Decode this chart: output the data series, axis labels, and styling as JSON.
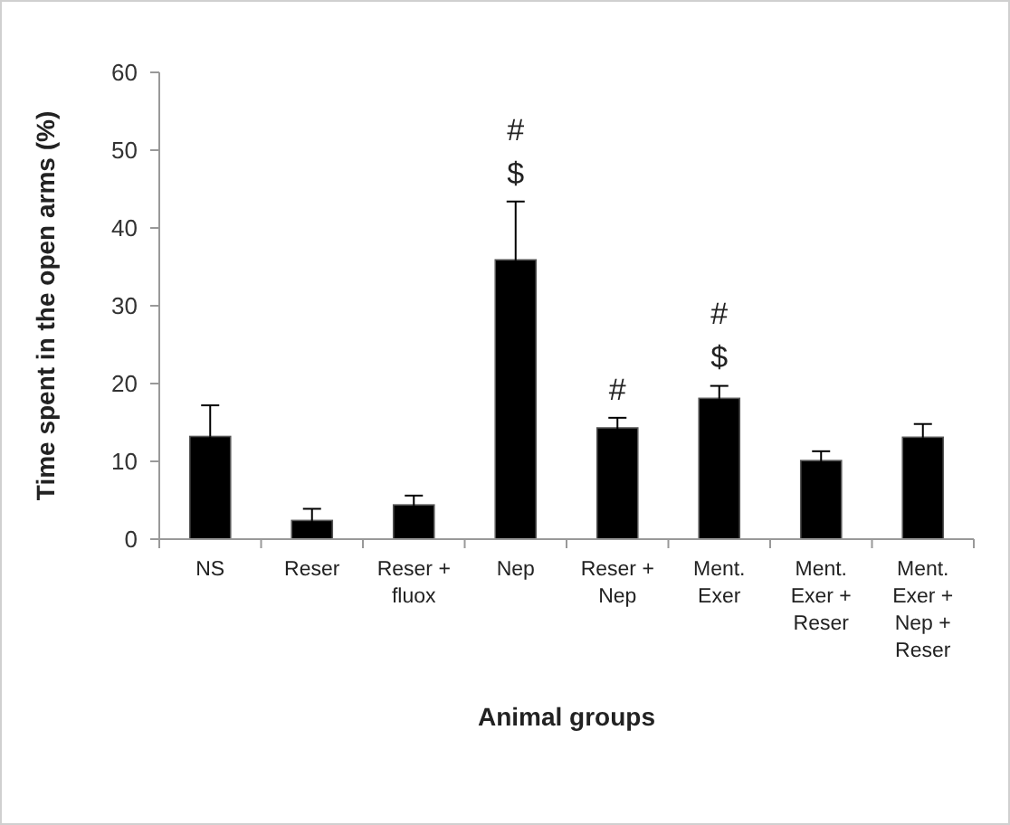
{
  "chart_data": {
    "type": "bar",
    "xlabel": "Animal groups",
    "ylabel": "Time spent in the open arms (%)",
    "categories": [
      "NS",
      "Reser",
      "Reser + fluox",
      "Nep",
      "Reser + Nep",
      "Ment. Exer",
      "Ment. Exer + Reser",
      "Ment. Exer + Nep + Reser"
    ],
    "values": [
      13.2,
      2.4,
      4.4,
      35.9,
      14.3,
      18.1,
      10.1,
      13.1
    ],
    "errors": [
      4,
      1.5,
      1.2,
      7.5,
      1.3,
      1.6,
      1.2,
      1.7
    ],
    "color": "#000000",
    "ylim": [
      0,
      60
    ],
    "yticks": [
      0,
      10,
      20,
      30,
      40,
      50,
      60
    ],
    "grid": false,
    "annotations": [
      "#",
      "$",
      "#",
      "#",
      "$"
    ]
  }
}
